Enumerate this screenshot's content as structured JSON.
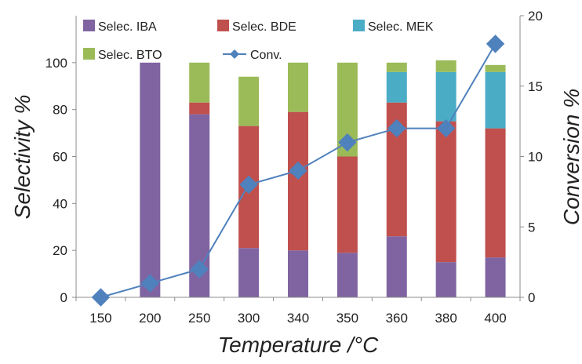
{
  "chart_data": {
    "type": "bar",
    "stacked": true,
    "categories": [
      "150",
      "200",
      "250",
      "300",
      "340",
      "350",
      "360",
      "380",
      "400"
    ],
    "series": [
      {
        "name": "Selec. IBA",
        "kind": "bar",
        "axis": "left",
        "color": "#8064A2",
        "values": [
          0,
          100,
          78,
          21,
          20,
          19,
          26,
          15,
          17
        ]
      },
      {
        "name": "Selec. BDE",
        "kind": "bar",
        "axis": "left",
        "color": "#C0504D",
        "values": [
          0,
          0,
          5,
          52,
          59,
          41,
          57,
          60,
          55
        ]
      },
      {
        "name": "Selec. MEK",
        "kind": "bar",
        "axis": "left",
        "color": "#4BACC6",
        "values": [
          0,
          0,
          0,
          0,
          0,
          0,
          13,
          21,
          24
        ]
      },
      {
        "name": "Selec. BTO",
        "kind": "bar",
        "axis": "left",
        "color": "#9BBB59",
        "values": [
          0,
          0,
          17,
          21,
          21,
          40,
          4,
          5,
          3
        ]
      },
      {
        "name": "Conv.",
        "kind": "line",
        "axis": "right",
        "color": "#4F81BD",
        "values": [
          0,
          1,
          2,
          8,
          9,
          11,
          12,
          12,
          18
        ]
      }
    ],
    "xlabel": "Temperature /°C",
    "ylabel": "Selectivity %",
    "y2label": "Conversion %",
    "ylim": [
      0,
      120
    ],
    "y2lim": [
      0,
      20
    ],
    "yticks": [
      0,
      20,
      40,
      60,
      80,
      100
    ],
    "y2ticks": [
      0,
      5,
      10,
      15,
      20
    ],
    "grid": false,
    "legend_position": "top"
  }
}
